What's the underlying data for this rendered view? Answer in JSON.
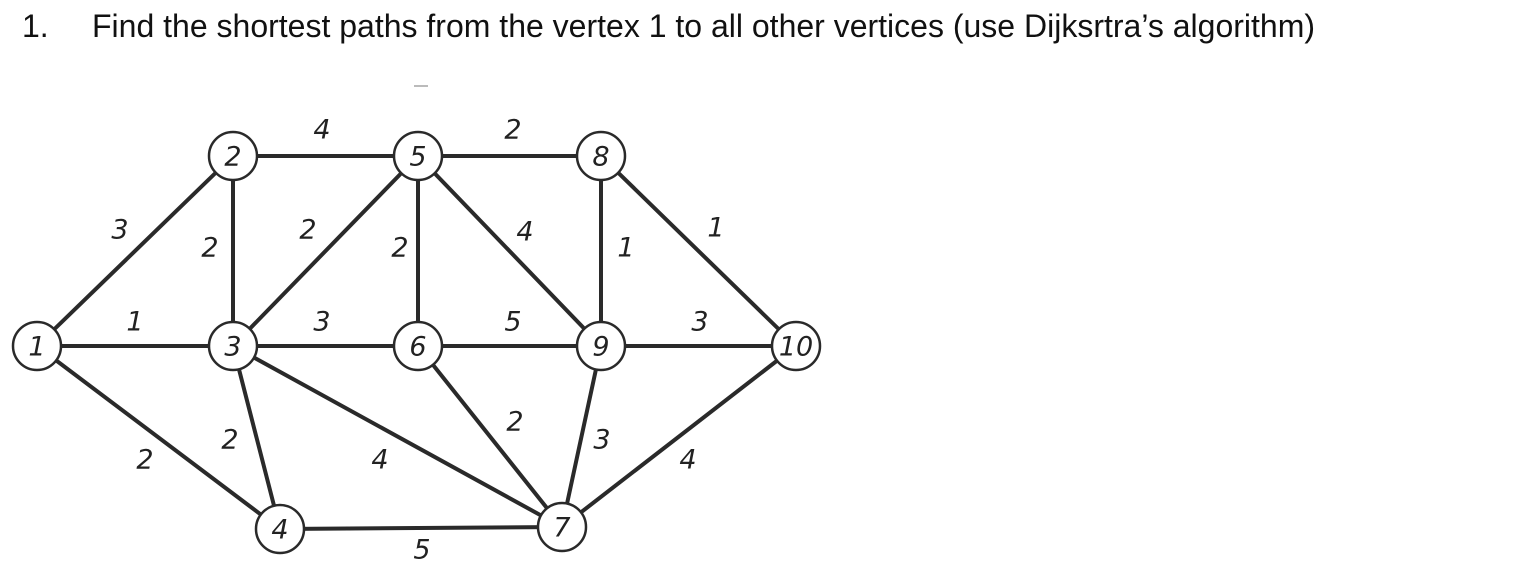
{
  "problem": {
    "number": "1.",
    "text": "Find the shortest paths from the vertex 1 to all other vertices (use Dijksrtra’s algorithm)"
  },
  "graph": {
    "nodes": [
      {
        "id": "1",
        "label": "1"
      },
      {
        "id": "2",
        "label": "2"
      },
      {
        "id": "3",
        "label": "3"
      },
      {
        "id": "4",
        "label": "4"
      },
      {
        "id": "5",
        "label": "5"
      },
      {
        "id": "6",
        "label": "6"
      },
      {
        "id": "7",
        "label": "7"
      },
      {
        "id": "8",
        "label": "8"
      },
      {
        "id": "9",
        "label": "9"
      },
      {
        "id": "10",
        "label": "10"
      }
    ],
    "edges": [
      {
        "from": "1",
        "to": "2",
        "weight": "3"
      },
      {
        "from": "1",
        "to": "3",
        "weight": "1"
      },
      {
        "from": "1",
        "to": "4",
        "weight": "2"
      },
      {
        "from": "2",
        "to": "5",
        "weight": "4"
      },
      {
        "from": "2",
        "to": "3",
        "weight": "2"
      },
      {
        "from": "3",
        "to": "5",
        "weight": "2"
      },
      {
        "from": "3",
        "to": "6",
        "weight": "3"
      },
      {
        "from": "3",
        "to": "4",
        "weight": "2"
      },
      {
        "from": "3",
        "to": "7",
        "weight": "4"
      },
      {
        "from": "4",
        "to": "7",
        "weight": "5"
      },
      {
        "from": "5",
        "to": "8",
        "weight": "2"
      },
      {
        "from": "5",
        "to": "6",
        "weight": "2"
      },
      {
        "from": "5",
        "to": "9",
        "weight": "4"
      },
      {
        "from": "6",
        "to": "9",
        "weight": "5"
      },
      {
        "from": "6",
        "to": "7",
        "weight": "2"
      },
      {
        "from": "8",
        "to": "9",
        "weight": "1"
      },
      {
        "from": "8",
        "to": "10",
        "weight": "1"
      },
      {
        "from": "9",
        "to": "10",
        "weight": "3"
      },
      {
        "from": "9",
        "to": "7",
        "weight": "3"
      },
      {
        "from": "10",
        "to": "7",
        "weight": "4"
      }
    ]
  }
}
